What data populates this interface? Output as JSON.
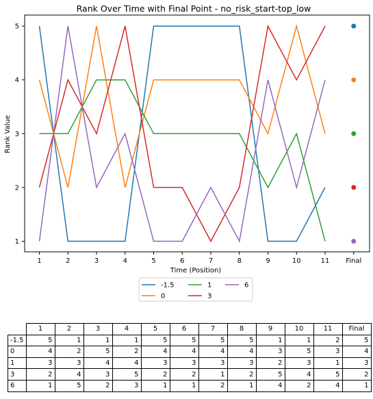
{
  "chart_data": {
    "type": "line",
    "title": "Rank Over Time with Final Point - no_risk_start-top_low",
    "xlabel": "Time (Position)",
    "ylabel": "Rank Value",
    "x": [
      1,
      2,
      3,
      4,
      5,
      6,
      7,
      8,
      9,
      10,
      11
    ],
    "x_tick_labels": [
      "1",
      "2",
      "3",
      "4",
      "5",
      "6",
      "7",
      "8",
      "9",
      "10",
      "11",
      "Final"
    ],
    "y_ticks": [
      1,
      2,
      3,
      4,
      5
    ],
    "ylim": [
      0.8,
      5.2
    ],
    "legend": "below-plot",
    "series": [
      {
        "name": "-1.5",
        "color": "#1f77b4",
        "values": [
          5,
          1,
          1,
          1,
          5,
          5,
          5,
          5,
          1,
          1,
          2
        ],
        "final": 5
      },
      {
        "name": "0",
        "color": "#ff7f0e",
        "values": [
          4,
          2,
          5,
          2,
          4,
          4,
          4,
          4,
          3,
          5,
          3
        ],
        "final": 4
      },
      {
        "name": "1",
        "color": "#2ca02c",
        "values": [
          3,
          3,
          4,
          4,
          3,
          3,
          3,
          3,
          2,
          3,
          1
        ],
        "final": 3
      },
      {
        "name": "3",
        "color": "#d62728",
        "values": [
          2,
          4,
          3,
          5,
          2,
          2,
          1,
          2,
          5,
          4,
          5
        ],
        "final": 2
      },
      {
        "name": "6",
        "color": "#9467bd",
        "values": [
          1,
          5,
          2,
          3,
          1,
          1,
          2,
          1,
          4,
          2,
          4
        ],
        "final": 1
      }
    ]
  },
  "table": {
    "headers": [
      "1",
      "2",
      "3",
      "4",
      "5",
      "6",
      "7",
      "8",
      "9",
      "10",
      "11",
      "Final"
    ],
    "rows": [
      {
        "label": "-1.5",
        "cells": [
          "5",
          "1",
          "1",
          "1",
          "5",
          "5",
          "5",
          "5",
          "1",
          "1",
          "2",
          "5"
        ]
      },
      {
        "label": "0",
        "cells": [
          "4",
          "2",
          "5",
          "2",
          "4",
          "4",
          "4",
          "4",
          "3",
          "5",
          "3",
          "4"
        ]
      },
      {
        "label": "1",
        "cells": [
          "3",
          "3",
          "4",
          "4",
          "3",
          "3",
          "3",
          "3",
          "2",
          "3",
          "1",
          "3"
        ]
      },
      {
        "label": "3",
        "cells": [
          "2",
          "4",
          "3",
          "5",
          "2",
          "2",
          "1",
          "2",
          "5",
          "4",
          "5",
          "2"
        ]
      },
      {
        "label": "6",
        "cells": [
          "1",
          "5",
          "2",
          "3",
          "1",
          "1",
          "2",
          "1",
          "4",
          "2",
          "4",
          "1"
        ]
      }
    ]
  }
}
